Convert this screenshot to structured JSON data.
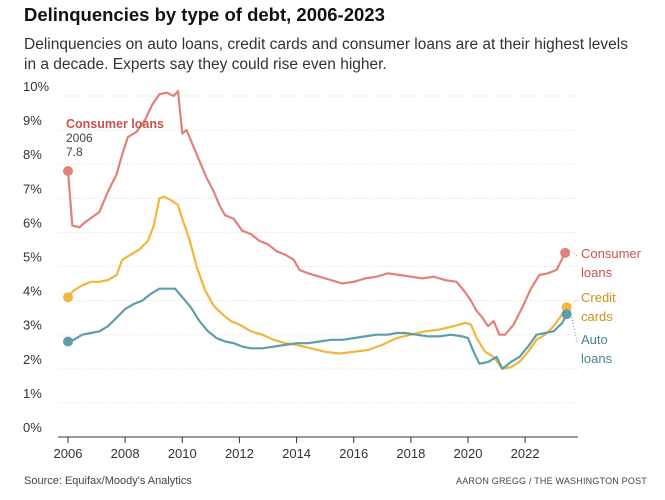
{
  "header": {
    "title": "Delinquencies by type of debt, 2006-2023",
    "subtitle": "Delinquencies on auto loans, credit cards and consumer loans are at their highest levels in a decade. Experts say they could rise even higher."
  },
  "footer": {
    "source": "Source: Equifax/Moody's Analytics",
    "credit": "AARON GREGG / THE WASHINGTON POST"
  },
  "colors": {
    "consumer": "#e0827a",
    "consumer_label": "#c8534b",
    "credit": "#f2b63c",
    "credit_label": "#c9921a",
    "auto": "#5d9eaa",
    "auto_label": "#4a8591",
    "grid": "#dcdcdc",
    "axis": "#333333"
  },
  "chart_data": {
    "type": "line",
    "ylim": [
      0,
      10
    ],
    "xlim": [
      2006,
      2023.5
    ],
    "y_ticks": [
      0,
      1,
      2,
      3,
      4,
      5,
      6,
      7,
      8,
      9,
      10
    ],
    "y_tick_labels": [
      "0%",
      "1%",
      "2%",
      "3%",
      "4%",
      "5%",
      "6%",
      "7%",
      "8%",
      "9%",
      "10%"
    ],
    "x_ticks": [
      2006,
      2008,
      2010,
      2012,
      2014,
      2016,
      2018,
      2020,
      2022
    ],
    "x_tick_labels": [
      "2006",
      "2008",
      "2010",
      "2012",
      "2014",
      "2016",
      "2018",
      "2020",
      "2022"
    ],
    "grid": "horizontal",
    "start_annotation": {
      "series": "Consumer loans",
      "label": "Consumer loans",
      "year": "2006",
      "value": "7.8"
    },
    "series": [
      {
        "name": "Consumer loans",
        "key": "consumer",
        "end_label": [
          "Consumer",
          "loans"
        ],
        "points": [
          [
            2006,
            7.8
          ],
          [
            2006.15,
            6.2
          ],
          [
            2006.4,
            6.15
          ],
          [
            2006.6,
            6.3
          ],
          [
            2006.85,
            6.45
          ],
          [
            2007.1,
            6.6
          ],
          [
            2007.4,
            7.2
          ],
          [
            2007.7,
            7.7
          ],
          [
            2007.9,
            8.3
          ],
          [
            2008.1,
            8.8
          ],
          [
            2008.4,
            8.95
          ],
          [
            2008.7,
            9.3
          ],
          [
            2008.95,
            9.75
          ],
          [
            2009.2,
            10.05
          ],
          [
            2009.45,
            10.1
          ],
          [
            2009.7,
            10.0
          ],
          [
            2009.85,
            10.15
          ],
          [
            2010.0,
            8.9
          ],
          [
            2010.15,
            9.0
          ],
          [
            2010.4,
            8.5
          ],
          [
            2010.6,
            8.1
          ],
          [
            2010.85,
            7.6
          ],
          [
            2011.1,
            7.2
          ],
          [
            2011.3,
            6.8
          ],
          [
            2011.5,
            6.5
          ],
          [
            2011.8,
            6.4
          ],
          [
            2012.1,
            6.05
          ],
          [
            2012.4,
            5.95
          ],
          [
            2012.7,
            5.75
          ],
          [
            2013.0,
            5.65
          ],
          [
            2013.3,
            5.45
          ],
          [
            2013.6,
            5.35
          ],
          [
            2013.9,
            5.2
          ],
          [
            2014.1,
            4.9
          ],
          [
            2014.4,
            4.8
          ],
          [
            2014.8,
            4.7
          ],
          [
            2015.2,
            4.6
          ],
          [
            2015.6,
            4.5
          ],
          [
            2016.0,
            4.55
          ],
          [
            2016.4,
            4.65
          ],
          [
            2016.8,
            4.7
          ],
          [
            2017.2,
            4.8
          ],
          [
            2017.6,
            4.75
          ],
          [
            2018.0,
            4.7
          ],
          [
            2018.4,
            4.65
          ],
          [
            2018.8,
            4.7
          ],
          [
            2019.2,
            4.6
          ],
          [
            2019.6,
            4.55
          ],
          [
            2019.9,
            4.25
          ],
          [
            2020.1,
            4.0
          ],
          [
            2020.3,
            3.7
          ],
          [
            2020.5,
            3.5
          ],
          [
            2020.7,
            3.25
          ],
          [
            2020.9,
            3.4
          ],
          [
            2021.1,
            3.0
          ],
          [
            2021.3,
            3.0
          ],
          [
            2021.6,
            3.3
          ],
          [
            2021.9,
            3.8
          ],
          [
            2022.2,
            4.35
          ],
          [
            2022.5,
            4.75
          ],
          [
            2022.8,
            4.8
          ],
          [
            2023.1,
            4.9
          ],
          [
            2023.4,
            5.4
          ]
        ]
      },
      {
        "name": "Credit cards",
        "key": "credit",
        "end_label": [
          "Credit",
          "cards"
        ],
        "points": [
          [
            2006,
            4.1
          ],
          [
            2006.2,
            4.3
          ],
          [
            2006.5,
            4.45
          ],
          [
            2006.8,
            4.55
          ],
          [
            2007.1,
            4.55
          ],
          [
            2007.4,
            4.6
          ],
          [
            2007.7,
            4.75
          ],
          [
            2007.9,
            5.2
          ],
          [
            2008.2,
            5.35
          ],
          [
            2008.5,
            5.5
          ],
          [
            2008.8,
            5.75
          ],
          [
            2009.0,
            6.2
          ],
          [
            2009.2,
            7.0
          ],
          [
            2009.35,
            7.05
          ],
          [
            2009.6,
            6.95
          ],
          [
            2009.85,
            6.8
          ],
          [
            2010.0,
            6.4
          ],
          [
            2010.25,
            5.8
          ],
          [
            2010.5,
            5.0
          ],
          [
            2010.8,
            4.3
          ],
          [
            2011.1,
            3.85
          ],
          [
            2011.4,
            3.6
          ],
          [
            2011.7,
            3.4
          ],
          [
            2012.0,
            3.3
          ],
          [
            2012.4,
            3.1
          ],
          [
            2012.8,
            3.0
          ],
          [
            2013.2,
            2.85
          ],
          [
            2013.6,
            2.75
          ],
          [
            2014.0,
            2.7
          ],
          [
            2014.5,
            2.6
          ],
          [
            2015.0,
            2.5
          ],
          [
            2015.5,
            2.45
          ],
          [
            2016.0,
            2.5
          ],
          [
            2016.5,
            2.55
          ],
          [
            2017.0,
            2.7
          ],
          [
            2017.5,
            2.9
          ],
          [
            2018.0,
            3.0
          ],
          [
            2018.5,
            3.1
          ],
          [
            2019.0,
            3.15
          ],
          [
            2019.5,
            3.25
          ],
          [
            2019.9,
            3.35
          ],
          [
            2020.1,
            3.3
          ],
          [
            2020.3,
            2.9
          ],
          [
            2020.6,
            2.5
          ],
          [
            2020.9,
            2.35
          ],
          [
            2021.2,
            2.0
          ],
          [
            2021.5,
            2.05
          ],
          [
            2021.8,
            2.2
          ],
          [
            2022.1,
            2.5
          ],
          [
            2022.4,
            2.85
          ],
          [
            2022.7,
            3.0
          ],
          [
            2023.0,
            3.25
          ],
          [
            2023.3,
            3.6
          ],
          [
            2023.45,
            3.8
          ]
        ]
      },
      {
        "name": "Auto loans",
        "key": "auto",
        "end_label": [
          "Auto",
          "loans"
        ],
        "points": [
          [
            2006,
            2.8
          ],
          [
            2006.2,
            2.85
          ],
          [
            2006.5,
            3.0
          ],
          [
            2006.8,
            3.05
          ],
          [
            2007.1,
            3.1
          ],
          [
            2007.4,
            3.25
          ],
          [
            2007.7,
            3.5
          ],
          [
            2008.0,
            3.75
          ],
          [
            2008.3,
            3.9
          ],
          [
            2008.6,
            4.0
          ],
          [
            2008.9,
            4.2
          ],
          [
            2009.2,
            4.35
          ],
          [
            2009.5,
            4.35
          ],
          [
            2009.75,
            4.35
          ],
          [
            2010.0,
            4.1
          ],
          [
            2010.3,
            3.8
          ],
          [
            2010.6,
            3.4
          ],
          [
            2010.9,
            3.1
          ],
          [
            2011.2,
            2.9
          ],
          [
            2011.5,
            2.8
          ],
          [
            2011.8,
            2.75
          ],
          [
            2012.1,
            2.65
          ],
          [
            2012.4,
            2.6
          ],
          [
            2012.8,
            2.6
          ],
          [
            2013.2,
            2.65
          ],
          [
            2013.6,
            2.7
          ],
          [
            2014.0,
            2.75
          ],
          [
            2014.4,
            2.75
          ],
          [
            2014.8,
            2.8
          ],
          [
            2015.2,
            2.85
          ],
          [
            2015.6,
            2.85
          ],
          [
            2016.0,
            2.9
          ],
          [
            2016.4,
            2.95
          ],
          [
            2016.8,
            3.0
          ],
          [
            2017.2,
            3.0
          ],
          [
            2017.5,
            3.05
          ],
          [
            2017.8,
            3.05
          ],
          [
            2018.2,
            3.0
          ],
          [
            2018.6,
            2.95
          ],
          [
            2019.0,
            2.95
          ],
          [
            2019.4,
            3.0
          ],
          [
            2019.8,
            2.95
          ],
          [
            2020.0,
            2.9
          ],
          [
            2020.2,
            2.5
          ],
          [
            2020.4,
            2.15
          ],
          [
            2020.7,
            2.2
          ],
          [
            2021.0,
            2.35
          ],
          [
            2021.2,
            2.0
          ],
          [
            2021.5,
            2.2
          ],
          [
            2021.8,
            2.35
          ],
          [
            2022.1,
            2.65
          ],
          [
            2022.4,
            3.0
          ],
          [
            2022.7,
            3.05
          ],
          [
            2023.0,
            3.1
          ],
          [
            2023.3,
            3.35
          ],
          [
            2023.45,
            3.6
          ]
        ]
      }
    ]
  }
}
